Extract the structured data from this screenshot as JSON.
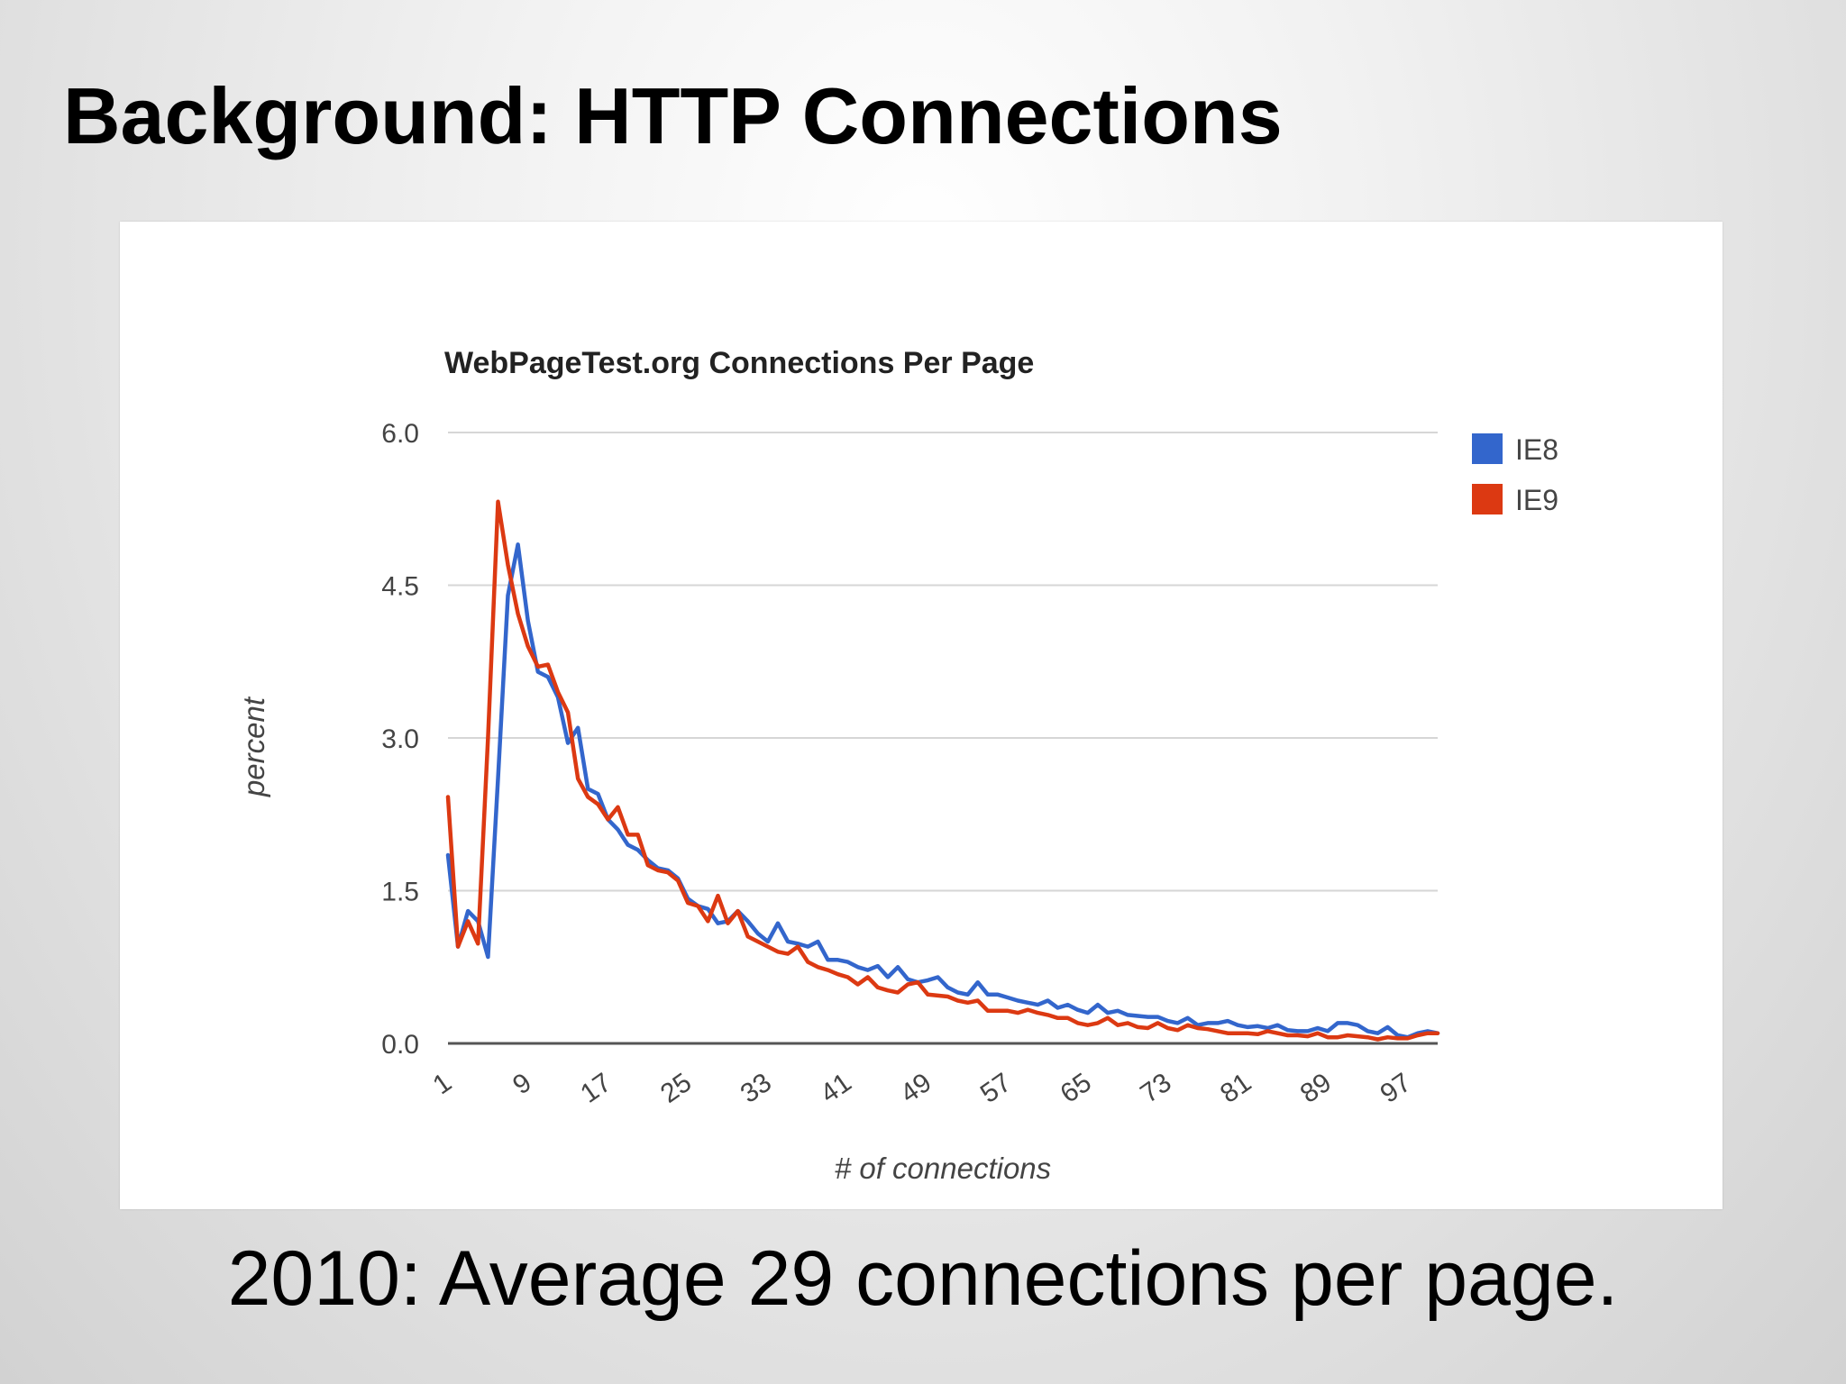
{
  "slide": {
    "title": "Background: HTTP Connections",
    "caption": "2010:  Average 29 connections per page."
  },
  "chart_data": {
    "type": "line",
    "title": "WebPageTest.org Connections Per Page",
    "xlabel": "# of connections",
    "ylabel": "percent",
    "xlim": [
      1,
      100
    ],
    "ylim": [
      0,
      6
    ],
    "x_ticks": [
      "1",
      "9",
      "17",
      "25",
      "33",
      "41",
      "49",
      "57",
      "65",
      "73",
      "81",
      "89",
      "97"
    ],
    "y_ticks": [
      "0.0",
      "1.5",
      "3.0",
      "4.5",
      "6.0"
    ],
    "grid": true,
    "legend_position": "right",
    "series": [
      {
        "name": "IE8",
        "color": "#3366cc",
        "points": [
          [
            1,
            1.85
          ],
          [
            2,
            0.95
          ],
          [
            3,
            1.3
          ],
          [
            4,
            1.2
          ],
          [
            5,
            0.85
          ],
          [
            6,
            2.6
          ],
          [
            7,
            4.4
          ],
          [
            8,
            4.9
          ],
          [
            9,
            4.15
          ],
          [
            10,
            3.65
          ],
          [
            11,
            3.6
          ],
          [
            12,
            3.4
          ],
          [
            13,
            2.95
          ],
          [
            14,
            3.1
          ],
          [
            15,
            2.5
          ],
          [
            16,
            2.45
          ],
          [
            17,
            2.2
          ],
          [
            18,
            2.1
          ],
          [
            19,
            1.95
          ],
          [
            20,
            1.9
          ],
          [
            21,
            1.8
          ],
          [
            22,
            1.72
          ],
          [
            23,
            1.7
          ],
          [
            24,
            1.62
          ],
          [
            25,
            1.42
          ],
          [
            26,
            1.35
          ],
          [
            27,
            1.32
          ],
          [
            28,
            1.18
          ],
          [
            29,
            1.2
          ],
          [
            30,
            1.3
          ],
          [
            31,
            1.2
          ],
          [
            32,
            1.08
          ],
          [
            33,
            1.0
          ],
          [
            34,
            1.18
          ],
          [
            35,
            1.0
          ],
          [
            36,
            0.98
          ],
          [
            37,
            0.95
          ],
          [
            38,
            1.0
          ],
          [
            39,
            0.82
          ],
          [
            40,
            0.82
          ],
          [
            41,
            0.8
          ],
          [
            42,
            0.75
          ],
          [
            43,
            0.72
          ],
          [
            44,
            0.76
          ],
          [
            45,
            0.65
          ],
          [
            46,
            0.75
          ],
          [
            47,
            0.63
          ],
          [
            48,
            0.6
          ],
          [
            49,
            0.62
          ],
          [
            50,
            0.65
          ],
          [
            51,
            0.55
          ],
          [
            52,
            0.5
          ],
          [
            53,
            0.48
          ],
          [
            54,
            0.6
          ],
          [
            55,
            0.48
          ],
          [
            56,
            0.48
          ],
          [
            57,
            0.45
          ],
          [
            58,
            0.42
          ],
          [
            59,
            0.4
          ],
          [
            60,
            0.38
          ],
          [
            61,
            0.42
          ],
          [
            62,
            0.35
          ],
          [
            63,
            0.38
          ],
          [
            64,
            0.33
          ],
          [
            65,
            0.3
          ],
          [
            66,
            0.38
          ],
          [
            67,
            0.3
          ],
          [
            68,
            0.32
          ],
          [
            69,
            0.28
          ],
          [
            70,
            0.27
          ],
          [
            71,
            0.26
          ],
          [
            72,
            0.26
          ],
          [
            73,
            0.22
          ],
          [
            74,
            0.2
          ],
          [
            75,
            0.25
          ],
          [
            76,
            0.18
          ],
          [
            77,
            0.2
          ],
          [
            78,
            0.2
          ],
          [
            79,
            0.22
          ],
          [
            80,
            0.18
          ],
          [
            81,
            0.16
          ],
          [
            82,
            0.17
          ],
          [
            83,
            0.15
          ],
          [
            84,
            0.18
          ],
          [
            85,
            0.13
          ],
          [
            86,
            0.12
          ],
          [
            87,
            0.12
          ],
          [
            88,
            0.15
          ],
          [
            89,
            0.12
          ],
          [
            90,
            0.2
          ],
          [
            91,
            0.2
          ],
          [
            92,
            0.18
          ],
          [
            93,
            0.12
          ],
          [
            94,
            0.1
          ],
          [
            95,
            0.16
          ],
          [
            96,
            0.08
          ],
          [
            97,
            0.06
          ],
          [
            98,
            0.1
          ],
          [
            99,
            0.12
          ],
          [
            100,
            0.1
          ]
        ]
      },
      {
        "name": "IE9",
        "color": "#dc3912",
        "points": [
          [
            1,
            2.42
          ],
          [
            2,
            0.95
          ],
          [
            3,
            1.2
          ],
          [
            4,
            0.98
          ],
          [
            5,
            3.0
          ],
          [
            6,
            5.32
          ],
          [
            7,
            4.7
          ],
          [
            8,
            4.22
          ],
          [
            9,
            3.9
          ],
          [
            10,
            3.7
          ],
          [
            11,
            3.72
          ],
          [
            12,
            3.45
          ],
          [
            13,
            3.25
          ],
          [
            14,
            2.6
          ],
          [
            15,
            2.42
          ],
          [
            16,
            2.35
          ],
          [
            17,
            2.2
          ],
          [
            18,
            2.32
          ],
          [
            19,
            2.05
          ],
          [
            20,
            2.05
          ],
          [
            21,
            1.75
          ],
          [
            22,
            1.7
          ],
          [
            23,
            1.68
          ],
          [
            24,
            1.6
          ],
          [
            25,
            1.38
          ],
          [
            26,
            1.35
          ],
          [
            27,
            1.2
          ],
          [
            28,
            1.45
          ],
          [
            29,
            1.18
          ],
          [
            30,
            1.3
          ],
          [
            31,
            1.05
          ],
          [
            32,
            1.0
          ],
          [
            33,
            0.95
          ],
          [
            34,
            0.9
          ],
          [
            35,
            0.88
          ],
          [
            36,
            0.95
          ],
          [
            37,
            0.8
          ],
          [
            38,
            0.75
          ],
          [
            39,
            0.72
          ],
          [
            40,
            0.68
          ],
          [
            41,
            0.65
          ],
          [
            42,
            0.58
          ],
          [
            43,
            0.65
          ],
          [
            44,
            0.55
          ],
          [
            45,
            0.52
          ],
          [
            46,
            0.5
          ],
          [
            47,
            0.58
          ],
          [
            48,
            0.6
          ],
          [
            49,
            0.48
          ],
          [
            50,
            0.47
          ],
          [
            51,
            0.46
          ],
          [
            52,
            0.42
          ],
          [
            53,
            0.4
          ],
          [
            54,
            0.42
          ],
          [
            55,
            0.32
          ],
          [
            56,
            0.32
          ],
          [
            57,
            0.32
          ],
          [
            58,
            0.3
          ],
          [
            59,
            0.33
          ],
          [
            60,
            0.3
          ],
          [
            61,
            0.28
          ],
          [
            62,
            0.25
          ],
          [
            63,
            0.25
          ],
          [
            64,
            0.2
          ],
          [
            65,
            0.18
          ],
          [
            66,
            0.2
          ],
          [
            67,
            0.25
          ],
          [
            68,
            0.18
          ],
          [
            69,
            0.2
          ],
          [
            70,
            0.16
          ],
          [
            71,
            0.15
          ],
          [
            72,
            0.2
          ],
          [
            73,
            0.15
          ],
          [
            74,
            0.13
          ],
          [
            75,
            0.18
          ],
          [
            76,
            0.15
          ],
          [
            77,
            0.14
          ],
          [
            78,
            0.12
          ],
          [
            79,
            0.1
          ],
          [
            80,
            0.1
          ],
          [
            81,
            0.1
          ],
          [
            82,
            0.09
          ],
          [
            83,
            0.12
          ],
          [
            84,
            0.1
          ],
          [
            85,
            0.08
          ],
          [
            86,
            0.08
          ],
          [
            87,
            0.07
          ],
          [
            88,
            0.1
          ],
          [
            89,
            0.06
          ],
          [
            90,
            0.06
          ],
          [
            91,
            0.08
          ],
          [
            92,
            0.07
          ],
          [
            93,
            0.06
          ],
          [
            94,
            0.04
          ],
          [
            95,
            0.06
          ],
          [
            96,
            0.05
          ],
          [
            97,
            0.05
          ],
          [
            98,
            0.08
          ],
          [
            99,
            0.1
          ],
          [
            100,
            0.1
          ]
        ]
      }
    ]
  }
}
